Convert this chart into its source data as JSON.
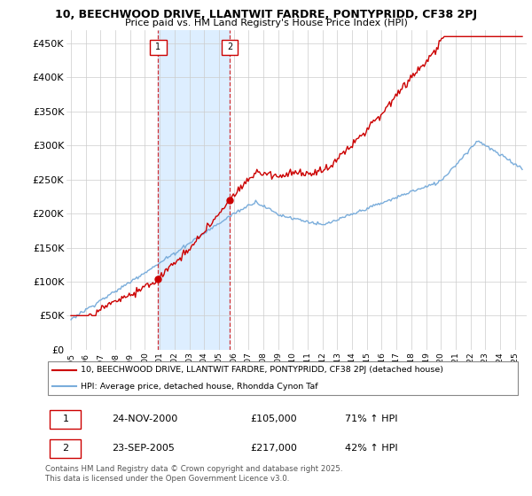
{
  "title": "10, BEECHWOOD DRIVE, LLANTWIT FARDRE, PONTYPRIDD, CF38 2PJ",
  "subtitle": "Price paid vs. HM Land Registry's House Price Index (HPI)",
  "legend_line1": "10, BEECHWOOD DRIVE, LLANTWIT FARDRE, PONTYPRIDD, CF38 2PJ (detached house)",
  "legend_line2": "HPI: Average price, detached house, Rhondda Cynon Taf",
  "sale1_date": "24-NOV-2000",
  "sale1_price": "£105,000",
  "sale1_hpi": "71% ↑ HPI",
  "sale2_date": "23-SEP-2005",
  "sale2_price": "£217,000",
  "sale2_hpi": "42% ↑ HPI",
  "footnote": "Contains HM Land Registry data © Crown copyright and database right 2025.\nThis data is licensed under the Open Government Licence v3.0.",
  "ylim": [
    0,
    470000
  ],
  "yticks": [
    0,
    50000,
    100000,
    150000,
    200000,
    250000,
    300000,
    350000,
    400000,
    450000
  ],
  "ytick_labels": [
    "£0",
    "£50K",
    "£100K",
    "£150K",
    "£200K",
    "£250K",
    "£300K",
    "£350K",
    "£400K",
    "£450K"
  ],
  "line_color_red": "#cc0000",
  "line_color_blue": "#7aaddb",
  "vline_color": "#cc0000",
  "shade_color": "#ddeeff",
  "sale1_year": 2000.9,
  "sale2_year": 2005.73,
  "background_color": "#ffffff",
  "grid_color": "#cccccc",
  "sale1_price_val": 105000,
  "sale2_price_val": 217000,
  "xmin": 1995,
  "xmax": 2025
}
